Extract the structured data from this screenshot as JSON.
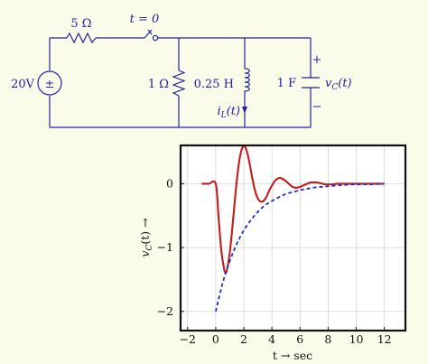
{
  "circuit": {
    "source_label": "20V",
    "source_symbol": "±",
    "r_series_label": "5 Ω",
    "switch_label": "t = 0",
    "r_shunt_label": "1 Ω",
    "inductor_label": "0.25 H",
    "current_label": "i_L(t)",
    "current_label_base": "i",
    "current_label_sub": "L",
    "current_label_arg": "(t)",
    "capacitor_label": "1 F",
    "voltage_label_base": "v",
    "voltage_label_sub": "C",
    "voltage_label_arg": "(t)",
    "plus_sign": "+",
    "minus_sign": "−"
  },
  "chart_data": {
    "type": "line",
    "xlabel": "t  → sec",
    "ylabel": "v_C(t)  →",
    "ylabel_base": "v",
    "ylabel_sub": "C",
    "ylabel_rest": "(t)  →",
    "xlim": [
      -2.5,
      13.5
    ],
    "ylim": [
      -2.3,
      0.6
    ],
    "xticks": [
      -2,
      0,
      2,
      4,
      6,
      8,
      10,
      12
    ],
    "xtick_labels": [
      "−2",
      "0",
      "2",
      "4",
      "6",
      "8",
      "10",
      "12"
    ],
    "yticks": [
      0,
      -1,
      -2
    ],
    "ytick_labels": [
      "0",
      "−1",
      "−2"
    ],
    "grid": true,
    "series": [
      {
        "color": "#c41a1a",
        "style": "solid",
        "x": [
          -1,
          -0.5,
          0,
          0.2,
          0.4,
          0.6,
          0.7,
          0.8,
          1.0,
          1.2,
          1.4,
          1.6,
          1.8,
          2.0,
          2.2,
          2.4,
          2.6,
          2.8,
          3.0,
          3.2,
          3.4,
          3.6,
          3.8,
          4.0,
          4.2,
          4.4,
          4.6,
          4.8,
          5.0,
          5.2,
          5.4,
          5.6,
          5.8,
          6.0,
          6.2,
          6.4,
          6.6,
          6.8,
          7.0,
          7.2,
          7.4,
          7.6,
          7.8,
          8.0,
          8.2,
          8.4,
          8.6,
          8.8,
          9.0,
          9.2,
          9.4,
          9.6,
          9.8,
          10.0,
          10.5,
          11.0,
          11.5,
          12.0
        ],
        "y": [
          0,
          0,
          0,
          -0.52,
          -1.05,
          -1.34,
          -1.39,
          -1.35,
          -1.08,
          -0.65,
          -0.17,
          0.24,
          0.5,
          0.59,
          0.52,
          0.33,
          0.09,
          -0.11,
          -0.23,
          -0.28,
          -0.27,
          -0.21,
          -0.11,
          -0.03,
          0.04,
          0.08,
          0.09,
          0.07,
          0.04,
          0.0,
          -0.04,
          -0.06,
          -0.06,
          -0.05,
          -0.03,
          -0.01,
          0.01,
          0.02,
          0.02,
          0.02,
          0.01,
          0.0,
          -0.01,
          -0.01,
          -0.01,
          -0.01,
          0.0,
          0.0,
          0.0,
          0.0,
          0.0,
          0.0,
          0.0,
          0.0,
          0.0,
          0.0,
          0.0,
          0.0
        ]
      },
      {
        "color": "#1a2fc4",
        "style": "dashed",
        "x": [
          0,
          0.5,
          1,
          1.5,
          2,
          2.5,
          3,
          3.5,
          4,
          4.5,
          5,
          5.5,
          6,
          6.5,
          7,
          7.5,
          8,
          9,
          10,
          11,
          12
        ],
        "y": [
          -2.0,
          -1.55,
          -1.21,
          -0.94,
          -0.73,
          -0.57,
          -0.44,
          -0.34,
          -0.27,
          -0.21,
          -0.16,
          -0.13,
          -0.1,
          -0.08,
          -0.06,
          -0.05,
          -0.04,
          -0.02,
          -0.01,
          -0.01,
          0.0
        ]
      }
    ]
  }
}
